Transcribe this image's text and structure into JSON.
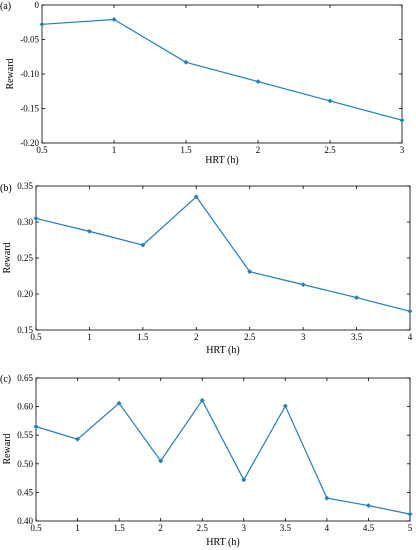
{
  "chart_data": [
    {
      "type": "line",
      "panel_label": "(a)",
      "xlabel": "HRT (h)",
      "ylabel": "Reward",
      "x": [
        0.5,
        1,
        1.5,
        2,
        2.5,
        3
      ],
      "series": [
        {
          "values": [
            -0.028,
            -0.021,
            -0.083,
            -0.111,
            -0.139,
            -0.167
          ]
        }
      ],
      "xlim": [
        0.5,
        3
      ],
      "ylim": [
        -0.2,
        0
      ],
      "xticks": [
        "0.5",
        "1",
        "1.5",
        "2",
        "2.5",
        "3"
      ],
      "yticks": [
        "-0.20",
        "-0.15",
        "-0.10",
        "-0.05",
        "0"
      ],
      "color": "#1f7fc1",
      "grid": false,
      "box": true
    },
    {
      "type": "line",
      "panel_label": "(b)",
      "xlabel": "HRT (h)",
      "ylabel": "Reward",
      "x": [
        0.5,
        1,
        1.5,
        2,
        2.5,
        3,
        3.5,
        4
      ],
      "series": [
        {
          "values": [
            0.305,
            0.287,
            0.268,
            0.335,
            0.231,
            0.213,
            0.195,
            0.176
          ]
        }
      ],
      "xlim": [
        0.5,
        4
      ],
      "ylim": [
        0.15,
        0.35
      ],
      "xticks": [
        "0.5",
        "1",
        "1.5",
        "2",
        "2.5",
        "3",
        "3.5",
        "4"
      ],
      "yticks": [
        "0.15",
        "0.20",
        "0.25",
        "0.30",
        "0.35"
      ],
      "color": "#1f7fc1",
      "grid": false,
      "box": true
    },
    {
      "type": "line",
      "panel_label": "(c)",
      "xlabel": "HRT (h)",
      "ylabel": "Reward",
      "x": [
        0.5,
        1,
        1.5,
        2,
        2.5,
        3,
        3.5,
        4,
        4.5,
        5
      ],
      "series": [
        {
          "values": [
            0.565,
            0.543,
            0.606,
            0.505,
            0.611,
            0.472,
            0.601,
            0.44,
            0.427,
            0.412
          ]
        }
      ],
      "xlim": [
        0.5,
        5
      ],
      "ylim": [
        0.4,
        0.65
      ],
      "xticks": [
        "0.5",
        "1",
        "1.5",
        "2",
        "2.5",
        "3",
        "3.5",
        "4",
        "4.5",
        "5"
      ],
      "yticks": [
        "0.40",
        "0.45",
        "0.50",
        "0.55",
        "0.60",
        "0.65"
      ],
      "color": "#1f7fc1",
      "grid": false,
      "box": true
    }
  ]
}
